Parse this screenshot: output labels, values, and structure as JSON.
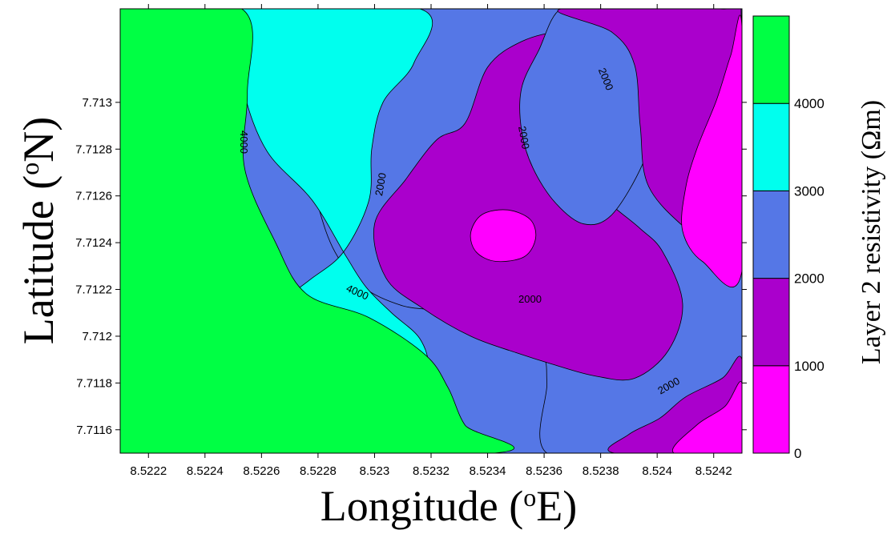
{
  "chart_data": {
    "type": "heatmap",
    "subtype": "filled-contour-map",
    "title": "",
    "xlabel": {
      "main": "Longitude (",
      "sup": "o",
      "unit": "E)"
    },
    "ylabel": {
      "main": "Latitude (",
      "sup": "o",
      "unit": "N)"
    },
    "xlim": [
      8.5221,
      8.5243
    ],
    "ylim": [
      7.7115,
      7.7134
    ],
    "x_ticks": [
      {
        "value": 8.5222,
        "label": "8.5222"
      },
      {
        "value": 8.5224,
        "label": "8.5224"
      },
      {
        "value": 8.5226,
        "label": "8.5226"
      },
      {
        "value": 8.5228,
        "label": "8.5228"
      },
      {
        "value": 8.523,
        "label": "8.523"
      },
      {
        "value": 8.5232,
        "label": "8.5232"
      },
      {
        "value": 8.5234,
        "label": "8.5234"
      },
      {
        "value": 8.5236,
        "label": "8.5236"
      },
      {
        "value": 8.5238,
        "label": "8.5238"
      },
      {
        "value": 8.524,
        "label": "8.524"
      },
      {
        "value": 8.5242,
        "label": "8.5242"
      }
    ],
    "y_ticks": [
      {
        "value": 7.7116,
        "label": "7.7116"
      },
      {
        "value": 7.7118,
        "label": "7.7118"
      },
      {
        "value": 7.712,
        "label": "7.712"
      },
      {
        "value": 7.7122,
        "label": "7.7122"
      },
      {
        "value": 7.7124,
        "label": "7.7124"
      },
      {
        "value": 7.7126,
        "label": "7.7126"
      },
      {
        "value": 7.7128,
        "label": "7.7128"
      },
      {
        "value": 7.713,
        "label": "7.713"
      }
    ],
    "colorbar": {
      "title": "Layer 2 resistivity (Ωm)",
      "range": [
        0,
        5000
      ],
      "levels": [
        {
          "from": 0,
          "to": 1000,
          "color": "#ff00ff"
        },
        {
          "from": 1000,
          "to": 2000,
          "color": "#aa00cc"
        },
        {
          "from": 2000,
          "to": 3000,
          "color": "#5577e6"
        },
        {
          "from": 3000,
          "to": 4000,
          "color": "#00ffee"
        },
        {
          "from": 4000,
          "to": 5000,
          "color": "#00ff44"
        }
      ],
      "tick_labels": [
        {
          "value": 0,
          "label": "0"
        },
        {
          "value": 1000,
          "label": "1000"
        },
        {
          "value": 2000,
          "label": "2000"
        },
        {
          "value": 3000,
          "label": "3000"
        },
        {
          "value": 4000,
          "label": "4000"
        }
      ]
    },
    "regions": [
      {
        "level": "2000-3000",
        "color": "#5577e6",
        "points": [
          [
            8.52316,
            7.7134
          ],
          [
            8.52366,
            7.7134
          ],
          [
            8.52378,
            7.71329
          ],
          [
            8.52396,
            7.71322
          ],
          [
            8.52412,
            7.71314
          ],
          [
            8.52418,
            7.71302
          ],
          [
            8.52416,
            7.71288
          ],
          [
            8.5241,
            7.71272
          ],
          [
            8.52413,
            7.71256
          ],
          [
            8.52421,
            7.71238
          ],
          [
            8.5243,
            7.71228
          ],
          [
            8.5243,
            7.7117
          ],
          [
            8.52418,
            7.7116
          ],
          [
            8.52405,
            7.71152
          ],
          [
            8.52396,
            7.7115
          ],
          [
            8.52361,
            7.7115
          ],
          [
            8.52361,
            7.7118
          ],
          [
            8.52359,
            7.71192
          ],
          [
            8.52346,
            7.712
          ],
          [
            8.52326,
            7.7121
          ],
          [
            8.5231,
            7.71213
          ],
          [
            8.52296,
            7.71221
          ],
          [
            8.52286,
            7.71236
          ],
          [
            8.5228,
            7.71256
          ],
          [
            8.52276,
            7.7128
          ],
          [
            8.52275,
            7.71304
          ],
          [
            8.52276,
            7.7134
          ]
        ]
      },
      {
        "level": "3000-4000",
        "color": "#00ffee",
        "points": [
          [
            8.52253,
            7.7134
          ],
          [
            8.52316,
            7.7134
          ],
          [
            8.52314,
            7.71317
          ],
          [
            8.52303,
            7.713
          ],
          [
            8.52299,
            7.7128
          ],
          [
            8.52298,
            7.71258
          ],
          [
            8.52289,
            7.71236
          ],
          [
            8.52277,
            7.71224
          ],
          [
            8.52264,
            7.71212
          ],
          [
            8.52251,
            7.71196
          ],
          [
            8.52243,
            7.71185
          ],
          [
            8.52241,
            7.71165
          ],
          [
            8.52239,
            7.7115
          ],
          [
            8.52317,
            7.7115
          ],
          [
            8.52314,
            7.71173
          ],
          [
            8.52319,
            7.71186
          ],
          [
            8.52316,
            7.71199
          ],
          [
            8.52306,
            7.7121
          ],
          [
            8.52297,
            7.71221
          ],
          [
            8.5229,
            7.71234
          ],
          [
            8.52278,
            7.71258
          ],
          [
            8.52262,
            7.71279
          ],
          [
            8.52254,
            7.71304
          ],
          [
            8.52255,
            7.7132
          ]
        ]
      },
      {
        "level": "4000-5000",
        "color": "#00ff44",
        "points": [
          [
            8.5221,
            7.7134
          ],
          [
            8.52253,
            7.7134
          ],
          [
            8.52255,
            7.71304
          ],
          [
            8.52254,
            7.71272
          ],
          [
            8.52265,
            7.7124
          ],
          [
            8.52276,
            7.71218
          ],
          [
            8.52298,
            7.71208
          ],
          [
            8.52318,
            7.71192
          ],
          [
            8.52326,
            7.71178
          ],
          [
            8.52332,
            7.71162
          ],
          [
            8.52342,
            7.7115
          ],
          [
            8.5221,
            7.7115
          ]
        ]
      },
      {
        "level": "1000-2000",
        "color": "#aa00cc",
        "points": [
          [
            8.52332,
            7.71291
          ],
          [
            8.5234,
            7.71315
          ],
          [
            8.52352,
            7.71326
          ],
          [
            8.52366,
            7.7133
          ],
          [
            8.52374,
            7.71325
          ],
          [
            8.5237,
            7.713
          ],
          [
            8.5237,
            7.71283
          ],
          [
            8.52374,
            7.71268
          ],
          [
            8.52384,
            7.71256
          ],
          [
            8.52394,
            7.71246
          ],
          [
            8.52402,
            7.71236
          ],
          [
            8.52409,
            7.71214
          ],
          [
            8.52404,
            7.71194
          ],
          [
            8.52392,
            7.71182
          ],
          [
            8.52378,
            7.71183
          ],
          [
            8.52363,
            7.71188
          ],
          [
            8.5235,
            7.71193
          ],
          [
            8.52334,
            7.712
          ],
          [
            8.52317,
            7.71212
          ],
          [
            8.52304,
            7.71225
          ],
          [
            8.523,
            7.71248
          ],
          [
            8.52311,
            7.71267
          ],
          [
            8.52322,
            7.71284
          ]
        ]
      },
      {
        "level": "2000-3000",
        "color": "#5577e6",
        "points": [
          [
            8.52366,
            7.7134
          ],
          [
            8.52381,
            7.71337
          ],
          [
            8.5239,
            7.7133
          ],
          [
            8.52396,
            7.71318
          ],
          [
            8.524,
            7.71296
          ],
          [
            8.52395,
            7.71274
          ],
          [
            8.52384,
            7.71252
          ],
          [
            8.52374,
            7.71248
          ],
          [
            8.52364,
            7.71257
          ],
          [
            8.52356,
            7.71272
          ],
          [
            8.52352,
            7.71288
          ],
          [
            8.52352,
            7.71306
          ],
          [
            8.52358,
            7.71322
          ]
        ]
      },
      {
        "level": "1000-2000",
        "color": "#aa00cc",
        "points": [
          [
            8.52366,
            7.7134
          ],
          [
            8.52422,
            7.7134
          ],
          [
            8.5243,
            7.71332
          ],
          [
            8.5243,
            7.71228
          ],
          [
            8.52412,
            7.71244
          ],
          [
            8.52397,
            7.71264
          ],
          [
            8.52394,
            7.7129
          ],
          [
            8.52392,
            7.71316
          ],
          [
            8.52384,
            7.7133
          ]
        ]
      },
      {
        "level": "0-1000",
        "color": "#ff00ff",
        "points": [
          [
            8.5243,
            7.71332
          ],
          [
            8.5243,
            7.71228
          ],
          [
            8.52416,
            7.71232
          ],
          [
            8.52409,
            7.71245
          ],
          [
            8.5241,
            7.71263
          ],
          [
            8.52414,
            7.7128
          ],
          [
            8.52421,
            7.71301
          ],
          [
            8.52426,
            7.7132
          ]
        ]
      },
      {
        "level": "1000-2000",
        "color": "#aa00cc",
        "points": [
          [
            8.52385,
            7.7115
          ],
          [
            8.5243,
            7.7115
          ],
          [
            8.5243,
            7.7119
          ],
          [
            8.52423,
            7.71182
          ],
          [
            8.5241,
            7.71174
          ],
          [
            8.52401,
            7.71165
          ],
          [
            8.5239,
            7.71158
          ]
        ]
      },
      {
        "level": "0-1000",
        "color": "#ff00ff",
        "points": [
          [
            8.52406,
            7.7115
          ],
          [
            8.5243,
            7.7115
          ],
          [
            8.5243,
            7.7118
          ],
          [
            8.52424,
            7.7117
          ],
          [
            8.52414,
            7.71162
          ]
        ]
      },
      {
        "level": "0-1000",
        "color": "#ff00ff",
        "points": [
          [
            8.52334,
            7.71244
          ],
          [
            8.52338,
            7.71252
          ],
          [
            8.52347,
            7.71254
          ],
          [
            8.52355,
            7.7125
          ],
          [
            8.52357,
            7.71242
          ],
          [
            8.52353,
            7.71234
          ],
          [
            8.52343,
            7.71232
          ],
          [
            8.52336,
            7.71236
          ]
        ]
      }
    ],
    "contour_labels": [
      {
        "text": "4000",
        "x": 8.52254,
        "y": 7.71283,
        "rotate": 90
      },
      {
        "text": "4000",
        "x": 8.52294,
        "y": 7.71219,
        "rotate": 24
      },
      {
        "text": "2000",
        "x": 8.52302,
        "y": 7.71265,
        "rotate": -80
      },
      {
        "text": "2000",
        "x": 8.52353,
        "y": 7.71285,
        "rotate": 80
      },
      {
        "text": "2000",
        "x": 8.52382,
        "y": 7.7131,
        "rotate": 68
      },
      {
        "text": "2000",
        "x": 8.52355,
        "y": 7.71216,
        "rotate": 0
      },
      {
        "text": "2000",
        "x": 8.52404,
        "y": 7.71179,
        "rotate": -30
      }
    ]
  }
}
